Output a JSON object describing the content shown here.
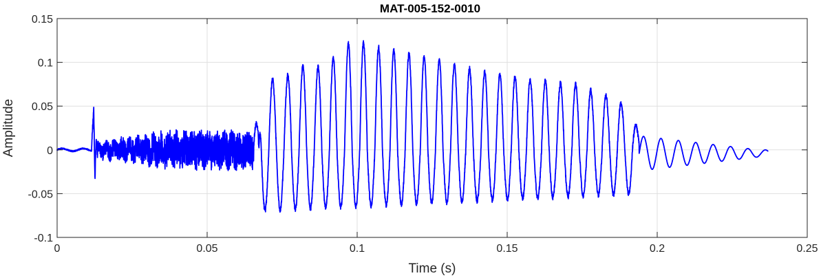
{
  "chart_data": {
    "type": "line",
    "title": "MAT-005-152-0010",
    "xlabel": "Time (s)",
    "ylabel": "Amplitude",
    "xlim": [
      0,
      0.25
    ],
    "ylim": [
      -0.1,
      0.15
    ],
    "xticks": [
      0,
      0.05,
      0.1,
      0.15,
      0.2,
      0.25
    ],
    "xtick_labels": [
      "0",
      "0.05",
      "0.1",
      "0.15",
      "0.2",
      "0.25"
    ],
    "yticks": [
      -0.1,
      -0.05,
      0,
      0.05,
      0.1,
      0.15
    ],
    "ytick_labels": [
      "-0.1",
      "-0.05",
      "0",
      "0.05",
      "0.1",
      "0.15"
    ],
    "grid": true,
    "line_color": "#0000ff",
    "series": [
      {
        "x": [
          0,
          0.0025,
          0.005,
          0.0075,
          0.01,
          0.0115,
          0.0122,
          0.0126,
          0.013,
          0.0135,
          0.015,
          0.02,
          0.025,
          0.03,
          0.035,
          0.04,
          0.045,
          0.05,
          0.055,
          0.06,
          0.0635,
          0.0655,
          0.067,
          0.068,
          0.07,
          0.075,
          0.08,
          0.085,
          0.09,
          0.095,
          0.1,
          0.105,
          0.11,
          0.115,
          0.12,
          0.125,
          0.13,
          0.135,
          0.14,
          0.145,
          0.15,
          0.155,
          0.16,
          0.165,
          0.17,
          0.175,
          0.18,
          0.185,
          0.19,
          0.194,
          0.2,
          0.205,
          0.21,
          0.215,
          0.22,
          0.225,
          0.23,
          0.235,
          0.237
        ],
        "y": [
          0,
          0.001,
          -0.001,
          0.002,
          0.0,
          0.004,
          0.047,
          -0.034,
          0.012,
          -0.01,
          0.008,
          -0.008,
          0.01,
          -0.012,
          0.014,
          -0.018,
          0.016,
          -0.02,
          0.018,
          -0.016,
          0.012,
          0.055,
          0.02,
          -0.075,
          0.082,
          0.078,
          0.097,
          0.093,
          0.096,
          0.118,
          0.125,
          0.119,
          0.115,
          0.111,
          0.107,
          0.104,
          0.1,
          0.095,
          0.09,
          0.087,
          0.085,
          0.081,
          0.08,
          0.077,
          0.075,
          0.074,
          0.063,
          0.061,
          0.048,
          0.02,
          0.02,
          0.025,
          0.021,
          0.012,
          0.01,
          0.008,
          0.007,
          0.004,
          -0.004
        ]
      }
    ]
  }
}
